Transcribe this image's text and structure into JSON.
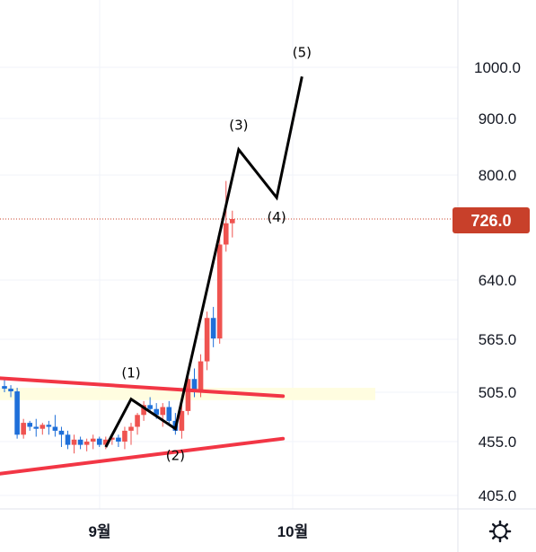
{
  "colors": {
    "up": "#ef5350",
    "down": "#1e6fd9",
    "grid": "#f0f3fa",
    "trendline": "#f23645",
    "wave": "#000000",
    "price_tag": "#c8402a",
    "highlight": "#fffde0"
  },
  "settings_icon": "gear-icon",
  "chart_data": {
    "type": "candlestick",
    "y_ticks": [
      "1000.0",
      "900.0",
      "800.0",
      "726.0",
      "640.0",
      "565.0",
      "505.0",
      "455.0",
      "405.0"
    ],
    "x_ticks": [
      "9월",
      "10월"
    ],
    "current_price": "726.0",
    "candles": [
      {
        "o": 512,
        "h": 520,
        "l": 505,
        "c": 509
      },
      {
        "o": 509,
        "h": 513,
        "l": 500,
        "c": 506
      },
      {
        "o": 506,
        "h": 510,
        "l": 458,
        "c": 462
      },
      {
        "o": 462,
        "h": 478,
        "l": 458,
        "c": 474
      },
      {
        "o": 474,
        "h": 476,
        "l": 466,
        "c": 470
      },
      {
        "o": 470,
        "h": 478,
        "l": 460,
        "c": 468
      },
      {
        "o": 468,
        "h": 474,
        "l": 462,
        "c": 472
      },
      {
        "o": 472,
        "h": 476,
        "l": 462,
        "c": 470
      },
      {
        "o": 470,
        "h": 482,
        "l": 460,
        "c": 466
      },
      {
        "o": 466,
        "h": 470,
        "l": 450,
        "c": 462
      },
      {
        "o": 462,
        "h": 466,
        "l": 448,
        "c": 452
      },
      {
        "o": 452,
        "h": 462,
        "l": 444,
        "c": 457
      },
      {
        "o": 457,
        "h": 460,
        "l": 448,
        "c": 452
      },
      {
        "o": 452,
        "h": 458,
        "l": 446,
        "c": 455
      },
      {
        "o": 455,
        "h": 462,
        "l": 448,
        "c": 458
      },
      {
        "o": 458,
        "h": 460,
        "l": 450,
        "c": 452
      },
      {
        "o": 452,
        "h": 460,
        "l": 448,
        "c": 457
      },
      {
        "o": 457,
        "h": 461,
        "l": 452,
        "c": 459
      },
      {
        "o": 459,
        "h": 462,
        "l": 450,
        "c": 455
      },
      {
        "o": 455,
        "h": 470,
        "l": 448,
        "c": 466
      },
      {
        "o": 466,
        "h": 474,
        "l": 452,
        "c": 470
      },
      {
        "o": 470,
        "h": 484,
        "l": 462,
        "c": 482
      },
      {
        "o": 482,
        "h": 496,
        "l": 476,
        "c": 492
      },
      {
        "o": 492,
        "h": 500,
        "l": 484,
        "c": 488
      },
      {
        "o": 488,
        "h": 494,
        "l": 478,
        "c": 482
      },
      {
        "o": 482,
        "h": 494,
        "l": 470,
        "c": 490
      },
      {
        "o": 490,
        "h": 496,
        "l": 472,
        "c": 476
      },
      {
        "o": 476,
        "h": 484,
        "l": 462,
        "c": 466
      },
      {
        "o": 466,
        "h": 492,
        "l": 458,
        "c": 486
      },
      {
        "o": 486,
        "h": 528,
        "l": 482,
        "c": 520
      },
      {
        "o": 520,
        "h": 532,
        "l": 500,
        "c": 506
      },
      {
        "o": 506,
        "h": 548,
        "l": 500,
        "c": 540
      },
      {
        "o": 540,
        "h": 600,
        "l": 530,
        "c": 592
      },
      {
        "o": 592,
        "h": 606,
        "l": 556,
        "c": 566
      },
      {
        "o": 566,
        "h": 700,
        "l": 560,
        "c": 690
      },
      {
        "o": 690,
        "h": 790,
        "l": 680,
        "c": 720
      },
      {
        "o": 720,
        "h": 740,
        "l": 700,
        "c": 726
      }
    ],
    "trendlines": [
      {
        "name": "upper-resistance",
        "from": {
          "bar": -1,
          "price": 521
        },
        "to": {
          "bar": 44,
          "price": 501
        }
      },
      {
        "name": "lower-support",
        "from": {
          "bar": -1,
          "price": 425
        },
        "to": {
          "bar": 44,
          "price": 458
        }
      }
    ],
    "highlight_zone": {
      "from_price": 510,
      "to_price": 497
    },
    "elliott_path": [
      {
        "bar": 16,
        "price": 450
      },
      {
        "bar": 20,
        "price": 498
      },
      {
        "bar": 27,
        "price": 468
      },
      {
        "bar": 37,
        "price": 845
      },
      {
        "bar": 43,
        "price": 762
      },
      {
        "bar": 47,
        "price": 982
      }
    ],
    "wave_labels": [
      {
        "text": "(1)",
        "bar": 20,
        "price": 522
      },
      {
        "text": "(2)",
        "bar": 27,
        "price": 438
      },
      {
        "text": "(3)",
        "bar": 37,
        "price": 880
      },
      {
        "text": "(4)",
        "bar": 43,
        "price": 722
      },
      {
        "text": "(5)",
        "bar": 47,
        "price": 1020
      }
    ]
  }
}
